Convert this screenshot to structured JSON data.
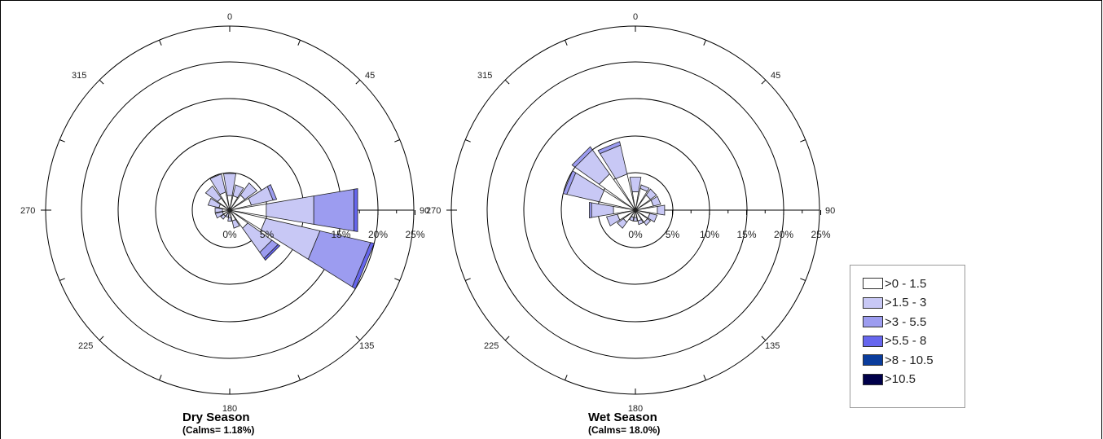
{
  "chart_data": [
    {
      "type": "wind-rose",
      "title": "Dry Season",
      "subtitle": "(Calms= 1.18%)",
      "direction_labels": [
        "0",
        "45",
        "90",
        "135",
        "180",
        "225",
        "270",
        "315"
      ],
      "radial_tick_labels": [
        "0%",
        "5%",
        "15%",
        "20%",
        "25%"
      ],
      "radial_range": [
        0,
        25
      ],
      "petals": [
        {
          "direction": 0,
          "values": [
            2.0,
            3.0
          ]
        },
        {
          "direction": 22.5,
          "values": [
            2.0,
            1.5
          ]
        },
        {
          "direction": 45,
          "values": [
            2.5,
            2.0
          ]
        },
        {
          "direction": 67.5,
          "values": [
            3.0,
            3.0,
            0.5
          ]
        },
        {
          "direction": 90,
          "values": [
            5.0,
            6.5,
            5.5,
            0.5
          ]
        },
        {
          "direction": 112.5,
          "values": [
            5.0,
            7.5,
            7.0,
            0.5
          ]
        },
        {
          "direction": 135,
          "values": [
            3.0,
            4.0,
            1.0,
            0.3
          ]
        },
        {
          "direction": 157.5,
          "values": [
            1.5,
            1.0
          ]
        },
        {
          "direction": 180,
          "values": [
            1.0,
            0.5
          ]
        },
        {
          "direction": 202.5,
          "values": [
            0.5,
            0.5
          ]
        },
        {
          "direction": 225,
          "values": [
            1.0,
            0.5
          ]
        },
        {
          "direction": 247.5,
          "values": [
            1.0,
            1.0
          ]
        },
        {
          "direction": 270,
          "values": [
            1.0,
            1.0
          ]
        },
        {
          "direction": 292.5,
          "values": [
            1.5,
            1.5
          ]
        },
        {
          "direction": 315,
          "values": [
            2.0,
            2.0
          ]
        },
        {
          "direction": 337.5,
          "values": [
            2.5,
            2.5
          ]
        }
      ]
    },
    {
      "type": "wind-rose",
      "title": "Wet Season",
      "subtitle": "(Calms= 18.0%)",
      "direction_labels": [
        "0",
        "45",
        "90",
        "135",
        "180",
        "225",
        "270",
        "315"
      ],
      "radial_tick_labels": [
        "0%",
        "5%",
        "10%",
        "15%",
        "20%",
        "25%"
      ],
      "radial_range": [
        0,
        25
      ],
      "petals": [
        {
          "direction": 0,
          "values": [
            2.5,
            2.0
          ]
        },
        {
          "direction": 22.5,
          "values": [
            3.0,
            0.5
          ]
        },
        {
          "direction": 45,
          "values": [
            2.5,
            1.0
          ]
        },
        {
          "direction": 67.5,
          "values": [
            2.5,
            1.0
          ]
        },
        {
          "direction": 90,
          "values": [
            3.0,
            1.0
          ]
        },
        {
          "direction": 112.5,
          "values": [
            2.0,
            1.0
          ]
        },
        {
          "direction": 135,
          "values": [
            2.0,
            0.5
          ]
        },
        {
          "direction": 157.5,
          "values": [
            1.5,
            0.5
          ]
        },
        {
          "direction": 180,
          "values": [
            1.0,
            0.5
          ]
        },
        {
          "direction": 202.5,
          "values": [
            1.0,
            0.5
          ]
        },
        {
          "direction": 225,
          "values": [
            2.0,
            1.0
          ]
        },
        {
          "direction": 247.5,
          "values": [
            2.5,
            1.5
          ]
        },
        {
          "direction": 270,
          "values": [
            3.0,
            3.0,
            0.3
          ]
        },
        {
          "direction": 292.5,
          "values": [
            5.0,
            4.5,
            0.5
          ]
        },
        {
          "direction": 315,
          "values": [
            6.0,
            4.0,
            0.5
          ]
        },
        {
          "direction": 337.5,
          "values": [
            5.0,
            4.0,
            0.5
          ]
        }
      ]
    }
  ],
  "legend": {
    "items": [
      {
        "label": ">0 - 1.5",
        "color": "#ffffff"
      },
      {
        "label": ">1.5 - 3",
        "color": "#c8c8f5"
      },
      {
        "label": ">3 - 5.5",
        "color": "#9c9cf0"
      },
      {
        "label": ">5.5 - 8",
        "color": "#6666ee"
      },
      {
        "label": ">8 - 10.5",
        "color": "#0a3c9c"
      },
      {
        "label": ">10.5",
        "color": "#00004a"
      }
    ]
  }
}
